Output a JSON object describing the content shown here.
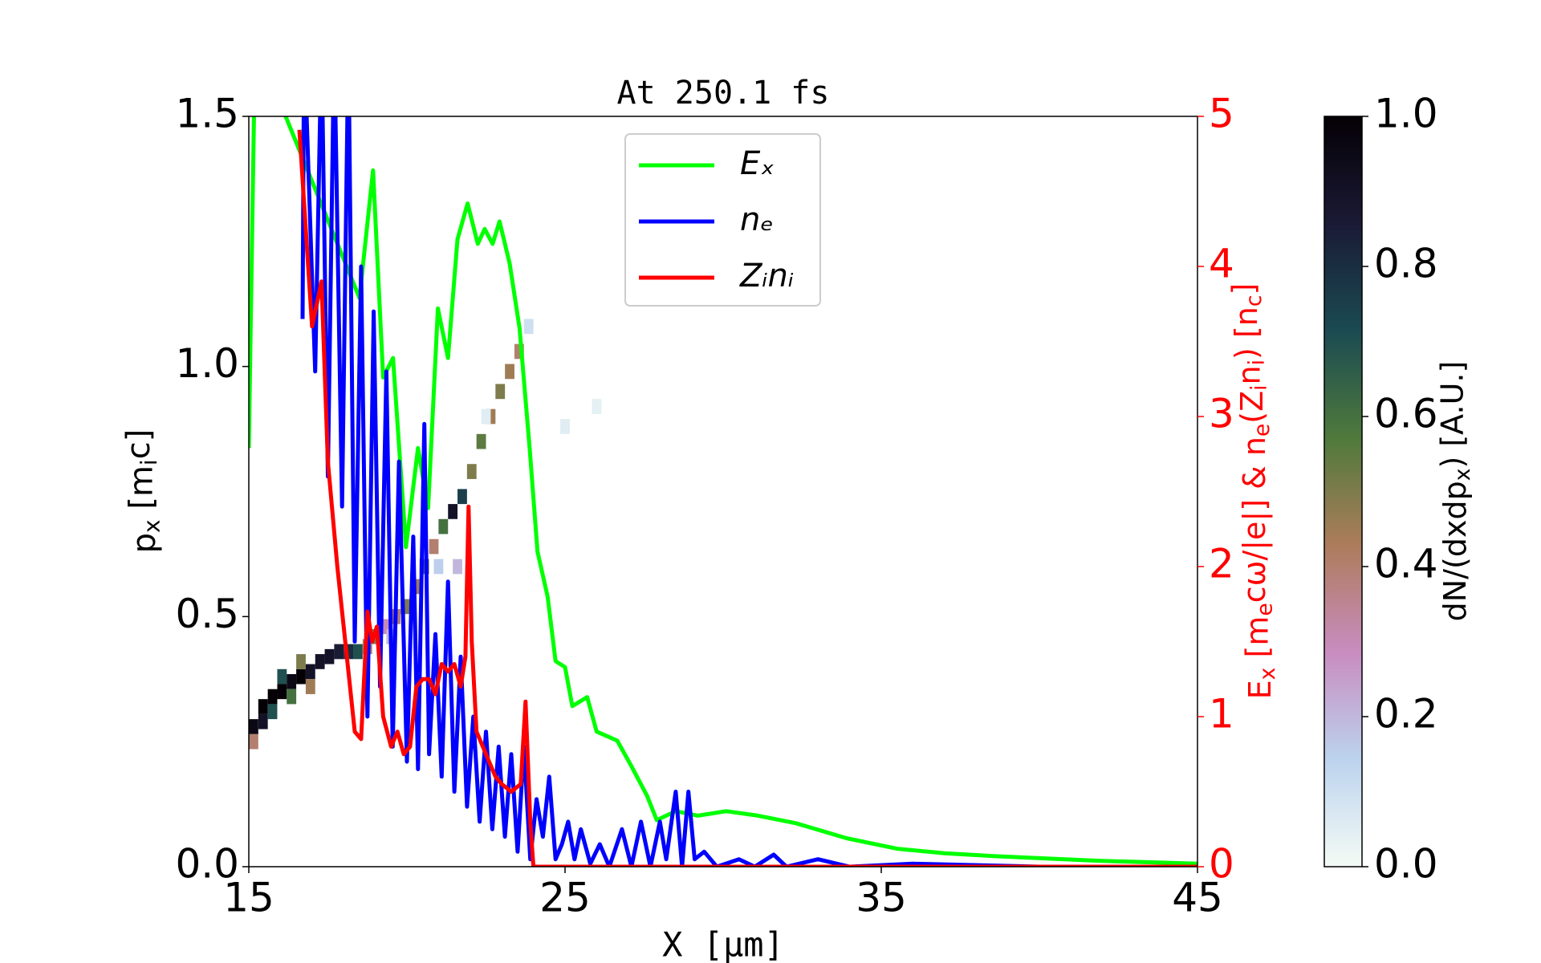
{
  "chart_data": {
    "type": "line",
    "title": "At 250.1 fs",
    "xlabel": "X [μm]",
    "ylabel": [
      "p",
      "x",
      "  [m",
      "i",
      "c]"
    ],
    "y2label": [
      "E",
      "x",
      "  [m",
      "e",
      "cω/|e|]  &  n",
      "e",
      "(Z",
      "i",
      "n",
      "i",
      ")  [n",
      "c",
      "]"
    ],
    "xlim": [
      15,
      45
    ],
    "xticks": [
      15,
      25,
      35,
      45
    ],
    "ylim": [
      0,
      1.5
    ],
    "yticks": [
      {
        "value": 0,
        "label": "0.0"
      },
      {
        "value": 0.5,
        "label": "0.5"
      },
      {
        "value": 1,
        "label": "1.0"
      },
      {
        "value": 1.5,
        "label": "1.5"
      }
    ],
    "y2lim": [
      0,
      5
    ],
    "y2ticks": [
      0,
      1,
      2,
      3,
      4,
      5
    ],
    "y2color": "#ff0000",
    "legend": "upper center",
    "series": [
      {
        "name": "Eₓ",
        "color": "#00ff00",
        "axis": "y2",
        "x": [
          15.0,
          15.2,
          18.5,
          18.93,
          19.25,
          19.56,
          19.97,
          20.35,
          20.67,
          20.98,
          21.3,
          21.6,
          21.92,
          22.24,
          22.46,
          22.71,
          22.93,
          23.25,
          23.56,
          23.88,
          24.13,
          24.45,
          24.7,
          25.0,
          25.23,
          25.7,
          26.0,
          26.65,
          27.1,
          27.6,
          27.9,
          28.5,
          29.2,
          30.1,
          31.1,
          32.3,
          33.9,
          35.5,
          37.0,
          38.6,
          41.8,
          45.0
        ],
        "values": [
          2.79,
          5.5,
          3.79,
          4.64,
          3.26,
          3.39,
          2.13,
          2.79,
          2.39,
          3.72,
          3.39,
          4.18,
          4.42,
          4.15,
          4.25,
          4.15,
          4.3,
          4.02,
          3.59,
          2.79,
          2.1,
          1.8,
          1.37,
          1.33,
          1.07,
          1.13,
          0.9,
          0.84,
          0.67,
          0.47,
          0.31,
          0.37,
          0.34,
          0.37,
          0.34,
          0.29,
          0.19,
          0.12,
          0.09,
          0.07,
          0.04,
          0.02
        ]
      },
      {
        "name": "nₑ",
        "color": "#0000ff",
        "axis": "y2",
        "x": [
          16.7,
          16.75,
          17.1,
          17.3,
          17.5,
          17.7,
          17.95,
          18.15,
          18.35,
          18.55,
          18.75,
          18.95,
          19.15,
          19.35,
          19.55,
          19.75,
          20.0,
          20.2,
          20.35,
          20.55,
          20.7,
          20.9,
          21.1,
          21.3,
          21.5,
          21.7,
          21.9,
          22.1,
          22.3,
          22.5,
          22.7,
          22.9,
          23.1,
          23.3,
          23.5,
          23.7,
          23.9,
          24.1,
          24.3,
          24.5,
          24.7,
          24.9,
          25.1,
          25.3,
          25.5,
          25.8,
          26.1,
          26.4,
          26.8,
          27.1,
          27.4,
          27.7,
          28.0,
          28.2,
          28.5,
          28.7,
          28.9,
          29.1,
          29.4,
          29.8,
          30.5,
          31.0,
          31.6,
          32.0,
          33.0,
          34.0,
          36.0,
          40.0,
          45.0
        ],
        "values": [
          3.65,
          5.5,
          3.3,
          5.5,
          2.6,
          5.5,
          2.4,
          5.5,
          1.5,
          4.0,
          1.0,
          3.7,
          1.2,
          3.3,
          0.8,
          2.7,
          0.7,
          2.2,
          0.65,
          2.95,
          0.75,
          1.55,
          0.6,
          1.9,
          0.5,
          1.4,
          0.4,
          1.0,
          0.3,
          0.9,
          0.25,
          0.8,
          0.2,
          0.75,
          0.1,
          0.8,
          0.05,
          0.45,
          0.2,
          0.6,
          0.05,
          0.15,
          0.3,
          0.05,
          0.25,
          0.02,
          0.15,
          0,
          0.25,
          0,
          0.3,
          0,
          0.3,
          0.05,
          0.5,
          0,
          0.5,
          0.05,
          0.1,
          0,
          0.05,
          0,
          0.08,
          0,
          0.05,
          0,
          0.02,
          0,
          0
        ]
      },
      {
        "name": "Zᵢnᵢ",
        "color": "#ff0000",
        "axis": "y2",
        "x": [
          16.6,
          17.0,
          17.3,
          17.5,
          17.8,
          18.0,
          18.2,
          18.35,
          18.55,
          18.75,
          18.9,
          19.05,
          19.25,
          19.5,
          19.7,
          19.9,
          20.1,
          20.3,
          20.5,
          20.7,
          20.9,
          21.1,
          21.3,
          21.5,
          21.7,
          21.85,
          21.95,
          22.05,
          22.2,
          22.4,
          22.6,
          22.8,
          23.0,
          23.3,
          23.6,
          23.75,
          23.9,
          24.0,
          45.0
        ],
        "values": [
          4.91,
          3.6,
          3.9,
          2.7,
          2.0,
          1.6,
          1.2,
          0.9,
          0.85,
          1.7,
          1.5,
          1.6,
          1.0,
          0.8,
          0.9,
          0.75,
          0.8,
          1.2,
          1.25,
          1.25,
          1.15,
          1.35,
          1.3,
          1.35,
          1.2,
          1.4,
          2.4,
          1.5,
          0.9,
          0.8,
          0.7,
          0.6,
          0.55,
          0.5,
          0.55,
          1.1,
          0.3,
          0,
          0
        ]
      }
    ],
    "heatmap": {
      "x": [
        15.15,
        15.15,
        15.45,
        15.45,
        15.75,
        15.75,
        16.05,
        16.05,
        16.35,
        16.35,
        16.65,
        16.65,
        16.95,
        16.95,
        17.25,
        17.55,
        17.85,
        18.15,
        18.45,
        18.75,
        19.05,
        19.35,
        19.65,
        19.95,
        20.25,
        20.55,
        20.85,
        21.15,
        21.45,
        21.75,
        22.05,
        22.35,
        22.65,
        22.95,
        23.25,
        23.55,
        23.85,
        22.5,
        25.0,
        26.0,
        21.0,
        21.6,
        19.5
      ],
      "y": [
        0.28,
        0.25,
        0.32,
        0.29,
        0.34,
        0.31,
        0.35,
        0.38,
        0.37,
        0.34,
        0.38,
        0.41,
        0.39,
        0.36,
        0.41,
        0.42,
        0.43,
        0.43,
        0.43,
        0.44,
        0.46,
        0.48,
        0.5,
        0.52,
        0.56,
        0.6,
        0.64,
        0.68,
        0.71,
        0.74,
        0.79,
        0.85,
        0.9,
        0.95,
        0.99,
        1.03,
        1.08,
        0.9,
        0.88,
        0.92,
        0.6,
        0.6,
        0.46
      ],
      "values": [
        0.95,
        0.4,
        1.0,
        0.9,
        1.0,
        0.7,
        1.0,
        0.7,
        0.95,
        0.6,
        1.0,
        0.5,
        0.9,
        0.45,
        0.9,
        0.9,
        0.85,
        0.8,
        0.7,
        0.4,
        0.5,
        0.3,
        0.4,
        0.5,
        0.45,
        0.55,
        0.4,
        0.6,
        0.9,
        0.75,
        0.5,
        0.55,
        0.45,
        0.5,
        0.45,
        0.4,
        0.1,
        0.05,
        0.05,
        0.04,
        0.15,
        0.2,
        0.2
      ],
      "cell": [
        0.3,
        0.03
      ]
    },
    "colorbar": {
      "label": [
        "dN/(dxdp",
        "x",
        ")  [A.U.]"
      ],
      "lim": [
        0,
        1
      ],
      "ticks": [
        {
          "value": 0,
          "label": "0.0"
        },
        {
          "value": 0.2,
          "label": "0.2"
        },
        {
          "value": 0.4,
          "label": "0.4"
        },
        {
          "value": 0.6,
          "label": "0.6"
        },
        {
          "value": 0.8,
          "label": "0.8"
        },
        {
          "value": 1,
          "label": "1.0"
        }
      ],
      "cmap": [
        "#f4fbf5",
        "#bcd3ee",
        "#c98cc0",
        "#ad7c5b",
        "#4f7a3c",
        "#1b4b52",
        "#1a1a35",
        "#050005"
      ]
    }
  }
}
